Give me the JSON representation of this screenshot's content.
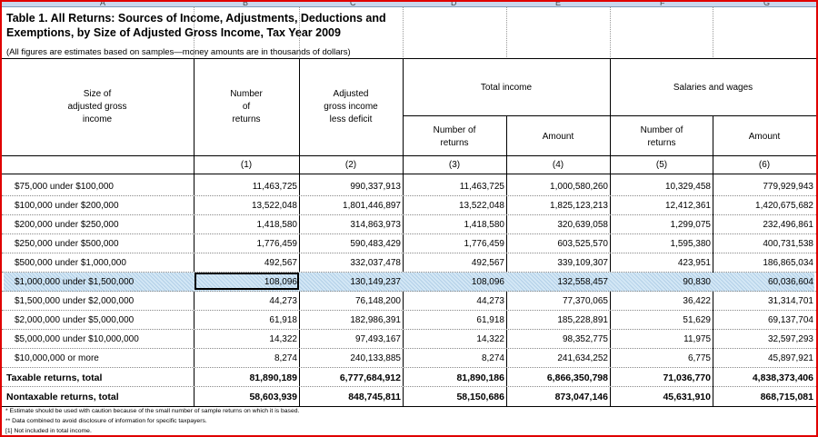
{
  "title_lines": [
    "Table 1.  All Returns: Sources of Income, Adjustments, Deductions and",
    "Exemptions, by Size of Adjusted Gross Income, Tax Year 2009"
  ],
  "subtitle": "(All figures are estimates based on samples—money amounts are in thousands of dollars)",
  "column_letters": [
    "A",
    "B",
    "C",
    "D",
    "E",
    "F",
    "G"
  ],
  "headers": {
    "size": [
      "Size of",
      "adjusted gross",
      "income"
    ],
    "number_of_returns": [
      "Number",
      "of",
      "returns"
    ],
    "agi": [
      "Adjusted",
      "gross income",
      "less deficit"
    ],
    "total_income": "Total income",
    "salaries": "Salaries and wages",
    "ti_number": [
      "Number of",
      "returns"
    ],
    "ti_amount": "Amount",
    "sw_number": [
      "Number of",
      "returns"
    ],
    "sw_amount": "Amount",
    "col_numbers": [
      "(1)",
      "(2)",
      "(3)",
      "(4)",
      "(5)",
      "(6)"
    ]
  },
  "rows": [
    {
      "label": "$75,000 under $100,000",
      "values": [
        "11,463,725",
        "990,337,913",
        "11,463,725",
        "1,000,580,260",
        "10,329,458",
        "779,929,943"
      ]
    },
    {
      "label": "$100,000 under $200,000",
      "values": [
        "13,522,048",
        "1,801,446,897",
        "13,522,048",
        "1,825,123,213",
        "12,412,361",
        "1,420,675,682"
      ]
    },
    {
      "label": "$200,000 under $250,000",
      "values": [
        "1,418,580",
        "314,863,973",
        "1,418,580",
        "320,639,058",
        "1,299,075",
        "232,496,861"
      ]
    },
    {
      "label": "$250,000 under $500,000",
      "values": [
        "1,776,459",
        "590,483,429",
        "1,776,459",
        "603,525,570",
        "1,595,380",
        "400,731,538"
      ]
    },
    {
      "label": "$500,000 under $1,000,000",
      "values": [
        "492,567",
        "332,037,478",
        "492,567",
        "339,109,307",
        "423,951",
        "186,865,034"
      ]
    },
    {
      "label": "$1,000,000 under $1,500,000",
      "values": [
        "108,096",
        "130,149,237",
        "108,096",
        "132,558,457",
        "90,830",
        "60,036,604"
      ]
    },
    {
      "label": "$1,500,000 under $2,000,000",
      "values": [
        "44,273",
        "76,148,200",
        "44,273",
        "77,370,065",
        "36,422",
        "31,314,701"
      ]
    },
    {
      "label": "$2,000,000 under $5,000,000",
      "values": [
        "61,918",
        "182,986,391",
        "61,918",
        "185,228,891",
        "51,629",
        "69,137,704"
      ]
    },
    {
      "label": "$5,000,000 under $10,000,000",
      "values": [
        "14,322",
        "97,493,167",
        "14,322",
        "98,352,775",
        "11,975",
        "32,597,293"
      ]
    },
    {
      "label": "$10,000,000 or more",
      "values": [
        "8,274",
        "240,133,885",
        "8,274",
        "241,634,252",
        "6,775",
        "45,897,921"
      ]
    },
    {
      "label": "Taxable returns, total",
      "values": [
        "81,890,189",
        "6,777,684,912",
        "81,890,186",
        "6,866,350,798",
        "71,036,770",
        "4,838,373,406"
      ]
    },
    {
      "label": "Nontaxable returns, total",
      "values": [
        "58,603,939",
        "848,745,811",
        "58,150,686",
        "873,047,146",
        "45,631,910",
        "868,715,081"
      ]
    }
  ],
  "footnotes": [
    "* Estimate should be used with caution because of the small number of sample returns on which it is based.",
    "** Data combined to avoid disclosure of information for specific taxpayers.",
    "[1] Not included in total income."
  ]
}
